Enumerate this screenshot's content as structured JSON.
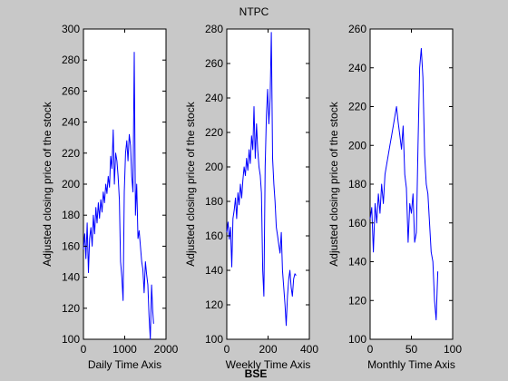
{
  "title": "NTPC",
  "footer": "BSE",
  "colors": {
    "background": "#c8c8c8",
    "axes": "#ffffff",
    "line": "#0000ff"
  },
  "chart_data": [
    {
      "type": "line",
      "xlabel": "Daily Time Axis",
      "ylabel": "Adjusted closing price of the stock",
      "xlim": [
        0,
        2000
      ],
      "ylim": [
        100,
        300
      ],
      "xticks": [
        0,
        1000,
        2000
      ],
      "yticks": [
        100,
        120,
        140,
        160,
        180,
        200,
        220,
        240,
        260,
        280,
        300
      ],
      "grid": false,
      "series": [
        {
          "x": [
            0,
            30,
            60,
            90,
            120,
            150,
            180,
            210,
            240,
            270,
            300,
            330,
            360,
            390,
            420,
            450,
            480,
            510,
            540,
            570,
            600,
            630,
            660,
            690,
            720,
            750,
            780,
            810,
            840,
            870,
            900,
            930,
            960,
            990,
            1020,
            1050,
            1080,
            1110,
            1140,
            1170,
            1200,
            1230,
            1260,
            1290,
            1320,
            1350,
            1380,
            1410,
            1440,
            1470,
            1500,
            1530,
            1560,
            1590,
            1620,
            1650,
            1680,
            1700
          ],
          "y": [
            158,
            168,
            152,
            175,
            143,
            165,
            172,
            160,
            180,
            168,
            185,
            175,
            188,
            178,
            190,
            182,
            195,
            188,
            200,
            194,
            205,
            198,
            218,
            210,
            235,
            200,
            220,
            215,
            205,
            190,
            150,
            140,
            125,
            195,
            220,
            228,
            215,
            232,
            225,
            205,
            195,
            285,
            180,
            200,
            165,
            170,
            160,
            150,
            145,
            130,
            150,
            142,
            135,
            115,
            100,
            135,
            118,
            110
          ]
        }
      ]
    },
    {
      "type": "line",
      "xlabel": "Weekly Time Axis",
      "ylabel": "Adjusted closing price of the stock",
      "xlim": [
        0,
        400
      ],
      "ylim": [
        100,
        280
      ],
      "xticks": [
        0,
        200,
        400
      ],
      "yticks": [
        100,
        120,
        140,
        160,
        180,
        200,
        220,
        240,
        260,
        280
      ],
      "grid": false,
      "series": [
        {
          "x": [
            0,
            6,
            12,
            18,
            24,
            30,
            36,
            42,
            48,
            54,
            60,
            66,
            72,
            78,
            84,
            90,
            96,
            102,
            108,
            114,
            120,
            126,
            132,
            138,
            144,
            150,
            156,
            162,
            168,
            174,
            180,
            186,
            192,
            198,
            204,
            210,
            216,
            222,
            228,
            234,
            240,
            246,
            252,
            258,
            264,
            270,
            276,
            282,
            288,
            294,
            300,
            306,
            312,
            318,
            324,
            330,
            336
          ],
          "y": [
            162,
            168,
            158,
            165,
            142,
            170,
            175,
            182,
            170,
            185,
            178,
            190,
            182,
            192,
            200,
            195,
            205,
            198,
            210,
            202,
            218,
            210,
            235,
            205,
            225,
            210,
            200,
            195,
            185,
            140,
            125,
            200,
            230,
            245,
            225,
            240,
            278,
            205,
            190,
            180,
            165,
            160,
            155,
            150,
            162,
            140,
            130,
            120,
            108,
            125,
            135,
            140,
            130,
            125,
            135,
            138,
            137
          ]
        }
      ]
    },
    {
      "type": "line",
      "xlabel": "Monthly Time Axis",
      "ylabel": "Adjusted closing price of the stock",
      "xlim": [
        0,
        100
      ],
      "ylim": [
        100,
        260
      ],
      "xticks": [
        0,
        50,
        100
      ],
      "yticks": [
        100,
        120,
        140,
        160,
        180,
        200,
        220,
        240,
        260
      ],
      "grid": false,
      "series": [
        {
          "x": [
            0,
            2,
            4,
            6,
            8,
            10,
            12,
            14,
            16,
            18,
            20,
            22,
            24,
            26,
            28,
            30,
            32,
            34,
            36,
            38,
            40,
            42,
            44,
            46,
            48,
            50,
            52,
            54,
            56,
            58,
            60,
            62,
            64,
            66,
            68,
            70,
            72,
            74,
            76,
            78,
            80,
            82
          ],
          "y": [
            162,
            168,
            145,
            170,
            160,
            175,
            165,
            180,
            170,
            185,
            190,
            195,
            200,
            205,
            210,
            215,
            220,
            212,
            205,
            198,
            210,
            185,
            178,
            150,
            170,
            165,
            175,
            150,
            155,
            200,
            240,
            250,
            235,
            195,
            180,
            175,
            160,
            145,
            140,
            120,
            110,
            135
          ]
        }
      ]
    }
  ]
}
